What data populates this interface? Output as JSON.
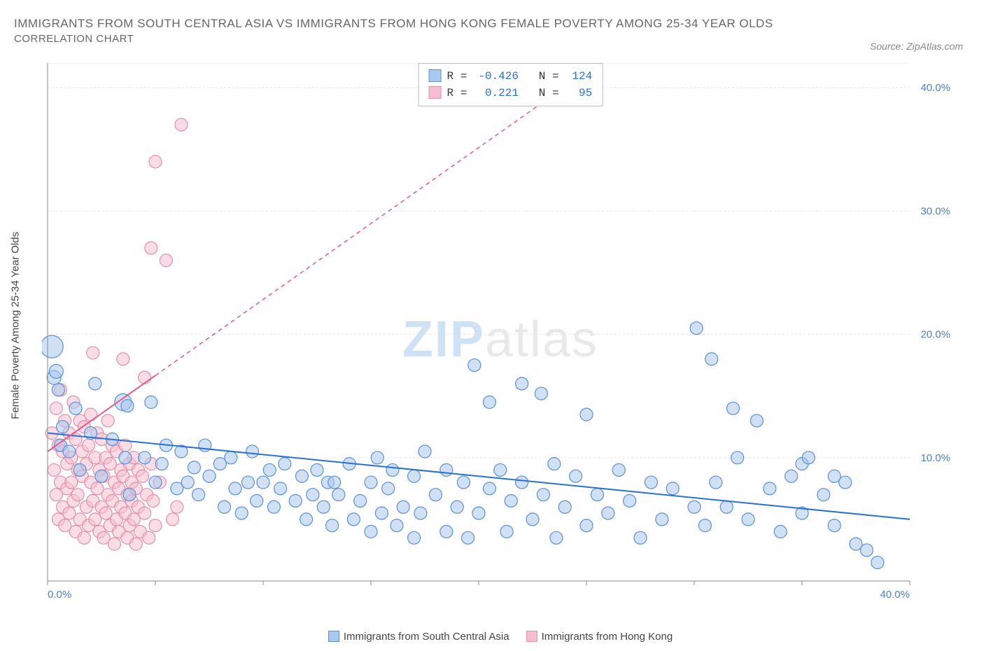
{
  "title_line1": "IMMIGRANTS FROM SOUTH CENTRAL ASIA VS IMMIGRANTS FROM HONG KONG FEMALE POVERTY AMONG 25-34 YEAR OLDS",
  "title_line2": "CORRELATION CHART",
  "source": "Source: ZipAtlas.com",
  "y_axis_label": "Female Poverty Among 25-34 Year Olds",
  "watermark_a": "ZIP",
  "watermark_b": "atlas",
  "chart": {
    "type": "scatter-with-trendlines",
    "background_color": "#ffffff",
    "grid_color": "#e6e6e6",
    "axis_color": "#888888",
    "xlim": [
      0,
      40
    ],
    "ylim": [
      0,
      42
    ],
    "x_ticks": [
      0,
      40
    ],
    "x_tick_labels": [
      "0.0%",
      "40.0%"
    ],
    "y_ticks": [
      10,
      20,
      30,
      40
    ],
    "y_tick_labels": [
      "10.0%",
      "20.0%",
      "30.0%",
      "40.0%"
    ],
    "y_grid": [
      10,
      20,
      30,
      40
    ],
    "marker_radius": 9,
    "marker_opacity": 0.55,
    "series": [
      {
        "id": "south_central_asia",
        "label": "Immigrants from South Central Asia",
        "fill": "#a9c9ef",
        "stroke": "#5a8fd6",
        "trend_color": "#2b6fd6",
        "trend_solid_to_x": 40,
        "trend": {
          "x1": 0,
          "y1": 12.0,
          "x2": 40,
          "y2": 5.0
        },
        "R": "-0.426",
        "N": "124",
        "points": [
          [
            0.2,
            19.0,
            16
          ],
          [
            0.3,
            16.5,
            10
          ],
          [
            0.4,
            17.0,
            10
          ],
          [
            0.5,
            15.5,
            9
          ],
          [
            0.6,
            11.0,
            9
          ],
          [
            0.7,
            12.5,
            9
          ],
          [
            1.0,
            10.5,
            9
          ],
          [
            1.3,
            14.0,
            9
          ],
          [
            1.5,
            9.0,
            9
          ],
          [
            2.0,
            12.0,
            9
          ],
          [
            2.2,
            16.0,
            9
          ],
          [
            2.5,
            8.5,
            9
          ],
          [
            3.0,
            11.5,
            9
          ],
          [
            3.5,
            14.5,
            12
          ],
          [
            3.6,
            10.0,
            9
          ],
          [
            3.7,
            14.2,
            9
          ],
          [
            3.8,
            7.0,
            9
          ],
          [
            4.5,
            10.0,
            9
          ],
          [
            4.8,
            14.5,
            9
          ],
          [
            5.0,
            8.0,
            9
          ],
          [
            5.3,
            9.5,
            9
          ],
          [
            5.5,
            11.0,
            9
          ],
          [
            6.0,
            7.5,
            9
          ],
          [
            6.2,
            10.5,
            9
          ],
          [
            6.5,
            8.0,
            9
          ],
          [
            6.8,
            9.2,
            9
          ],
          [
            7.0,
            7.0,
            9
          ],
          [
            7.3,
            11.0,
            9
          ],
          [
            7.5,
            8.5,
            9
          ],
          [
            8.0,
            9.5,
            9
          ],
          [
            8.2,
            6.0,
            9
          ],
          [
            8.5,
            10.0,
            9
          ],
          [
            8.7,
            7.5,
            9
          ],
          [
            9.0,
            5.5,
            9
          ],
          [
            9.3,
            8.0,
            9
          ],
          [
            9.5,
            10.5,
            9
          ],
          [
            9.7,
            6.5,
            9
          ],
          [
            10.0,
            8.0,
            9
          ],
          [
            10.3,
            9.0,
            9
          ],
          [
            10.5,
            6.0,
            9
          ],
          [
            10.8,
            7.5,
            9
          ],
          [
            11.0,
            9.5,
            9
          ],
          [
            11.5,
            6.5,
            9
          ],
          [
            11.8,
            8.5,
            9
          ],
          [
            12.0,
            5.0,
            9
          ],
          [
            12.3,
            7.0,
            9
          ],
          [
            12.5,
            9.0,
            9
          ],
          [
            12.8,
            6.0,
            9
          ],
          [
            13.0,
            8.0,
            9
          ],
          [
            13.2,
            4.5,
            9
          ],
          [
            13.3,
            8.0,
            9
          ],
          [
            13.5,
            7.0,
            9
          ],
          [
            14.0,
            9.5,
            9
          ],
          [
            14.2,
            5.0,
            9
          ],
          [
            14.5,
            6.5,
            9
          ],
          [
            15.0,
            8.0,
            9
          ],
          [
            15.0,
            4.0,
            9
          ],
          [
            15.3,
            10.0,
            9
          ],
          [
            15.5,
            5.5,
            9
          ],
          [
            15.8,
            7.5,
            9
          ],
          [
            16.0,
            9.0,
            9
          ],
          [
            16.2,
            4.5,
            9
          ],
          [
            16.5,
            6.0,
            9
          ],
          [
            17.0,
            8.5,
            9
          ],
          [
            17.0,
            3.5,
            9
          ],
          [
            17.3,
            5.5,
            9
          ],
          [
            17.5,
            10.5,
            9
          ],
          [
            18.0,
            7.0,
            9
          ],
          [
            18.5,
            4.0,
            9
          ],
          [
            18.5,
            9.0,
            9
          ],
          [
            19.0,
            6.0,
            9
          ],
          [
            19.3,
            8.0,
            9
          ],
          [
            19.5,
            3.5,
            9
          ],
          [
            19.8,
            17.5,
            9
          ],
          [
            20.0,
            5.5,
            9
          ],
          [
            20.5,
            14.5,
            9
          ],
          [
            20.5,
            7.5,
            9
          ],
          [
            21.0,
            9.0,
            9
          ],
          [
            21.3,
            4.0,
            9
          ],
          [
            21.5,
            6.5,
            9
          ],
          [
            22.0,
            8.0,
            9
          ],
          [
            22.0,
            16.0,
            9
          ],
          [
            22.5,
            5.0,
            9
          ],
          [
            22.9,
            15.2,
            9
          ],
          [
            23.0,
            7.0,
            9
          ],
          [
            23.5,
            9.5,
            9
          ],
          [
            23.6,
            3.5,
            9
          ],
          [
            24.0,
            6.0,
            9
          ],
          [
            24.5,
            8.5,
            9
          ],
          [
            25.0,
            4.5,
            9
          ],
          [
            25.0,
            13.5,
            9
          ],
          [
            25.5,
            7.0,
            9
          ],
          [
            26.0,
            5.5,
            9
          ],
          [
            26.5,
            9.0,
            9
          ],
          [
            27.0,
            6.5,
            9
          ],
          [
            27.5,
            3.5,
            9
          ],
          [
            28.0,
            8.0,
            9
          ],
          [
            28.5,
            5.0,
            9
          ],
          [
            29.0,
            7.5,
            9
          ],
          [
            30.0,
            6.0,
            9
          ],
          [
            30.1,
            20.5,
            9
          ],
          [
            30.5,
            4.5,
            9
          ],
          [
            30.8,
            18.0,
            9
          ],
          [
            31.0,
            8.0,
            9
          ],
          [
            31.5,
            6.0,
            9
          ],
          [
            31.8,
            14.0,
            9
          ],
          [
            32.0,
            10.0,
            9
          ],
          [
            32.5,
            5.0,
            9
          ],
          [
            32.9,
            13.0,
            9
          ],
          [
            33.5,
            7.5,
            9
          ],
          [
            34.0,
            4.0,
            9
          ],
          [
            34.5,
            8.5,
            9
          ],
          [
            35.0,
            9.5,
            9
          ],
          [
            35.0,
            5.5,
            9
          ],
          [
            35.3,
            10.0,
            9
          ],
          [
            36.0,
            7.0,
            9
          ],
          [
            36.5,
            4.5,
            9
          ],
          [
            36.5,
            8.5,
            9
          ],
          [
            37.0,
            8.0,
            9
          ],
          [
            37.5,
            3.0,
            9
          ],
          [
            38.0,
            2.5,
            9
          ],
          [
            38.5,
            1.5,
            9
          ]
        ]
      },
      {
        "id": "hong_kong",
        "label": "Immigrants from Hong Kong",
        "fill": "#f6bfcf",
        "stroke": "#e290aa",
        "trend_color": "#e25b88",
        "trend_solid_to_x": 5.0,
        "trend": {
          "x1": 0,
          "y1": 10.5,
          "x2": 28,
          "y2": 45.0
        },
        "R": "0.221",
        "N": "95",
        "points": [
          [
            0.2,
            12.0,
            9
          ],
          [
            0.3,
            9.0,
            9
          ],
          [
            0.4,
            14.0,
            9
          ],
          [
            0.4,
            7.0,
            9
          ],
          [
            0.5,
            11.0,
            9
          ],
          [
            0.5,
            5.0,
            9
          ],
          [
            0.6,
            15.5,
            9
          ],
          [
            0.6,
            8.0,
            9
          ],
          [
            0.7,
            10.5,
            9
          ],
          [
            0.7,
            6.0,
            9
          ],
          [
            0.8,
            13.0,
            9
          ],
          [
            0.8,
            4.5,
            9
          ],
          [
            0.9,
            9.5,
            9
          ],
          [
            0.9,
            7.5,
            9
          ],
          [
            1.0,
            12.0,
            9
          ],
          [
            1.0,
            5.5,
            9
          ],
          [
            1.1,
            10.0,
            9
          ],
          [
            1.1,
            8.0,
            9
          ],
          [
            1.2,
            14.5,
            9
          ],
          [
            1.2,
            6.5,
            9
          ],
          [
            1.3,
            11.5,
            9
          ],
          [
            1.3,
            4.0,
            9
          ],
          [
            1.4,
            9.0,
            9
          ],
          [
            1.4,
            7.0,
            9
          ],
          [
            1.5,
            13.0,
            9
          ],
          [
            1.5,
            5.0,
            9
          ],
          [
            1.6,
            10.5,
            9
          ],
          [
            1.6,
            8.5,
            9
          ],
          [
            1.7,
            12.5,
            9
          ],
          [
            1.7,
            3.5,
            9
          ],
          [
            1.8,
            6.0,
            9
          ],
          [
            1.8,
            9.5,
            9
          ],
          [
            1.9,
            11.0,
            9
          ],
          [
            1.9,
            4.5,
            9
          ],
          [
            2.0,
            8.0,
            9
          ],
          [
            2.0,
            13.5,
            9
          ],
          [
            2.1,
            18.5,
            9
          ],
          [
            2.1,
            6.5,
            9
          ],
          [
            2.2,
            10.0,
            9
          ],
          [
            2.2,
            5.0,
            9
          ],
          [
            2.3,
            7.5,
            9
          ],
          [
            2.3,
            12.0,
            9
          ],
          [
            2.4,
            4.0,
            9
          ],
          [
            2.4,
            9.0,
            9
          ],
          [
            2.5,
            11.5,
            9
          ],
          [
            2.5,
            6.0,
            9
          ],
          [
            2.6,
            8.5,
            9
          ],
          [
            2.6,
            3.5,
            9
          ],
          [
            2.7,
            10.0,
            9
          ],
          [
            2.7,
            5.5,
            9
          ],
          [
            2.8,
            7.0,
            9
          ],
          [
            2.8,
            13.0,
            9
          ],
          [
            2.9,
            4.5,
            9
          ],
          [
            2.9,
            9.5,
            9
          ],
          [
            3.0,
            11.0,
            9
          ],
          [
            3.0,
            6.5,
            9
          ],
          [
            3.1,
            8.0,
            9
          ],
          [
            3.1,
            3.0,
            9
          ],
          [
            3.2,
            5.0,
            9
          ],
          [
            3.2,
            10.5,
            9
          ],
          [
            3.3,
            7.5,
            9
          ],
          [
            3.3,
            4.0,
            9
          ],
          [
            3.4,
            9.0,
            9
          ],
          [
            3.4,
            6.0,
            9
          ],
          [
            3.5,
            18.0,
            9
          ],
          [
            3.5,
            8.5,
            9
          ],
          [
            3.6,
            5.5,
            9
          ],
          [
            3.6,
            11.0,
            9
          ],
          [
            3.7,
            3.5,
            9
          ],
          [
            3.7,
            7.0,
            9
          ],
          [
            3.8,
            9.5,
            9
          ],
          [
            3.8,
            4.5,
            9
          ],
          [
            3.9,
            6.5,
            9
          ],
          [
            3.9,
            8.0,
            9
          ],
          [
            4.0,
            10.0,
            9
          ],
          [
            4.0,
            5.0,
            9
          ],
          [
            4.1,
            7.5,
            9
          ],
          [
            4.1,
            3.0,
            9
          ],
          [
            4.2,
            9.0,
            9
          ],
          [
            4.2,
            6.0,
            9
          ],
          [
            4.3,
            4.0,
            9
          ],
          [
            4.4,
            8.5,
            9
          ],
          [
            4.5,
            16.5,
            9
          ],
          [
            4.5,
            5.5,
            9
          ],
          [
            4.6,
            7.0,
            9
          ],
          [
            4.7,
            3.5,
            9
          ],
          [
            4.8,
            9.5,
            9
          ],
          [
            4.8,
            27.0,
            9
          ],
          [
            4.9,
            6.5,
            9
          ],
          [
            5.0,
            4.5,
            9
          ],
          [
            5.2,
            8.0,
            9
          ],
          [
            5.5,
            26.0,
            9
          ],
          [
            5.8,
            5.0,
            9
          ],
          [
            6.2,
            37.0,
            9
          ],
          [
            6.0,
            6.0,
            9
          ],
          [
            5.0,
            34.0,
            9
          ]
        ]
      }
    ]
  },
  "legend_bottom": {
    "items": [
      {
        "swatch_fill": "#a9c9ef",
        "swatch_stroke": "#5a8fd6",
        "label": "Immigrants from South Central Asia"
      },
      {
        "swatch_fill": "#f6bfcf",
        "swatch_stroke": "#e290aa",
        "label": "Immigrants from Hong Kong"
      }
    ]
  },
  "stats_box": {
    "rows": [
      {
        "swatch_fill": "#a9c9ef",
        "swatch_stroke": "#5a8fd6",
        "R_label": "R =",
        "R": "-0.426",
        "N_label": "N =",
        "N": "124"
      },
      {
        "swatch_fill": "#f6bfcf",
        "swatch_stroke": "#e290aa",
        "R_label": "R =",
        "R": " 0.221",
        "N_label": "N =",
        "N": " 95"
      }
    ]
  }
}
